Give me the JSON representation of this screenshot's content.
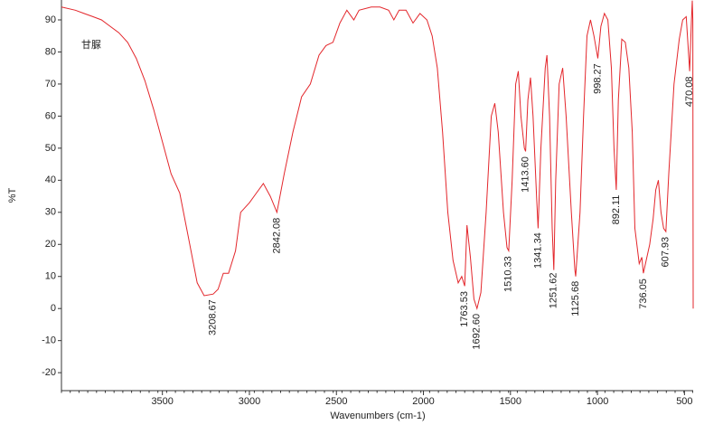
{
  "chart_data": {
    "type": "line",
    "xlabel": "Wavenumbers (cm-1)",
    "ylabel": "%T",
    "annotation": "甘脲",
    "xlim": [
      4080,
      450
    ],
    "ylim": [
      -25.6,
      96.2
    ],
    "xticks": [
      3500,
      3000,
      2500,
      2000,
      1500,
      1000,
      500
    ],
    "yticks": [
      -20,
      -10,
      0,
      10,
      20,
      30,
      40,
      50,
      60,
      70,
      80,
      90
    ],
    "x": [
      4080,
      4000,
      3950,
      3900,
      3850,
      3800,
      3750,
      3700,
      3650,
      3600,
      3550,
      3500,
      3450,
      3400,
      3350,
      3300,
      3260,
      3208,
      3180,
      3150,
      3120,
      3080,
      3050,
      3000,
      2960,
      2920,
      2880,
      2842,
      2800,
      2750,
      2700,
      2650,
      2600,
      2560,
      2520,
      2480,
      2440,
      2400,
      2370,
      2300,
      2250,
      2200,
      2170,
      2140,
      2100,
      2060,
      2020,
      1980,
      1950,
      1920,
      1890,
      1860,
      1830,
      1800,
      1780,
      1763,
      1750,
      1730,
      1710,
      1692,
      1670,
      1640,
      1610,
      1590,
      1570,
      1540,
      1520,
      1510,
      1490,
      1470,
      1455,
      1440,
      1420,
      1413,
      1400,
      1385,
      1370,
      1350,
      1341,
      1325,
      1300,
      1290,
      1275,
      1260,
      1251,
      1240,
      1220,
      1200,
      1180,
      1150,
      1130,
      1125,
      1100,
      1080,
      1060,
      1040,
      1020,
      998,
      980,
      960,
      940,
      920,
      905,
      892,
      880,
      860,
      840,
      820,
      800,
      785,
      760,
      745,
      736,
      720,
      700,
      680,
      665,
      650,
      635,
      620,
      607,
      590,
      560,
      530,
      510,
      490,
      470,
      460,
      455,
      452,
      450
    ],
    "series": [
      {
        "color": "#e3262b",
        "values": [
          94,
          93,
          92,
          91,
          90,
          88,
          86,
          83,
          78,
          71,
          62,
          52,
          42,
          36,
          22,
          8,
          4,
          4.5,
          6,
          11,
          11,
          18,
          30,
          33,
          36,
          39,
          35,
          30,
          42,
          55,
          66,
          70,
          79,
          82,
          83,
          89,
          93,
          90,
          93,
          94,
          94,
          93,
          90,
          93,
          93,
          89,
          92,
          90,
          85,
          75,
          55,
          30,
          15,
          8,
          10,
          7,
          26,
          16,
          3,
          0,
          5,
          30,
          60,
          64,
          55,
          30,
          19,
          18,
          40,
          70,
          74,
          60,
          50,
          49,
          65,
          72,
          60,
          35,
          25,
          50,
          75,
          79,
          60,
          25,
          12,
          40,
          70,
          75,
          60,
          30,
          12,
          10,
          30,
          60,
          85,
          90,
          85,
          78,
          88,
          92,
          90,
          75,
          50,
          37,
          65,
          84,
          83,
          75,
          55,
          25,
          14,
          16,
          11,
          15,
          20,
          28,
          37,
          40,
          30,
          25,
          24,
          42,
          70,
          84,
          90,
          91,
          74,
          90,
          96,
          90,
          0
        ]
      }
    ],
    "peak_labels": [
      {
        "label": "3208.67",
        "x": 3208.67
      },
      {
        "label": "2842.08",
        "x": 2842.08
      },
      {
        "label": "1763.53",
        "x": 1763.53
      },
      {
        "label": "1692.60",
        "x": 1692.6
      },
      {
        "label": "1510.33",
        "x": 1510.33
      },
      {
        "label": "1413.60",
        "x": 1413.6
      },
      {
        "label": "1341.34",
        "x": 1341.34
      },
      {
        "label": "1251.62",
        "x": 1251.62
      },
      {
        "label": "1125.68",
        "x": 1125.68
      },
      {
        "label": "998.27",
        "x": 998.27
      },
      {
        "label": "892.11",
        "x": 892.11
      },
      {
        "label": "736.05",
        "x": 736.05
      },
      {
        "label": "607.93",
        "x": 607.93
      },
      {
        "label": "470.08",
        "x": 470.08
      }
    ]
  }
}
